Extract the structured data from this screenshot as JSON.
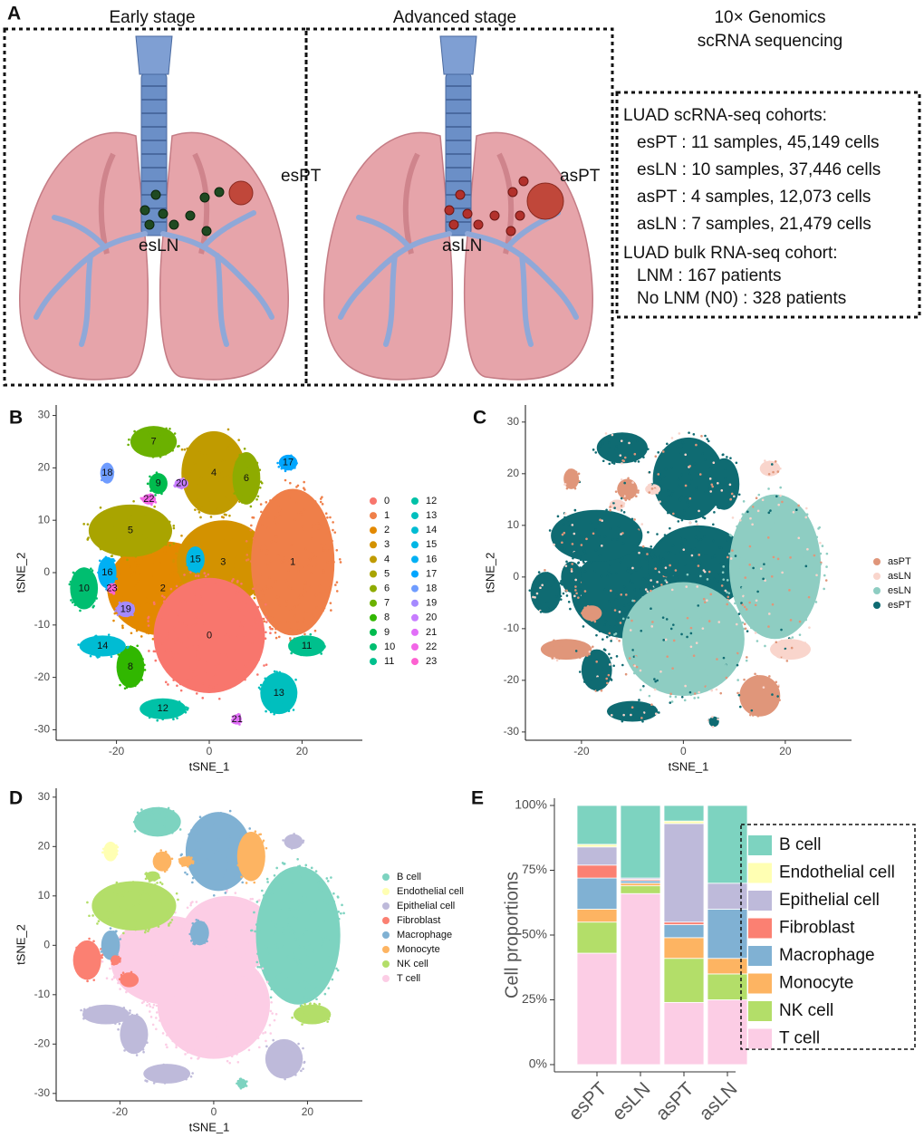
{
  "panel_a": {
    "label": "A",
    "early_title": "Early stage",
    "advanced_title": "Advanced stage",
    "method_title": [
      "10× Genomics",
      "scRNA sequencing"
    ],
    "early_sites": {
      "tumor": "esPT",
      "node": "esLN"
    },
    "advanced_sites": {
      "tumor": "asPT",
      "node": "asLN"
    },
    "scrna_heading": "LUAD scRNA-seq cohorts:",
    "scrna_items": [
      "esPT : 11 samples, 45,149 cells",
      "esLN : 10 samples, 37,446 cells",
      "asPT : 4 samples, 12,073 cells",
      "asLN : 7 samples, 21,479 cells"
    ],
    "bulk_heading": "LUAD bulk RNA-seq cohort:",
    "bulk_items": [
      "LNM : 167 patients",
      "No LNM (N0) : 328 patients"
    ]
  },
  "chart_data": [
    {
      "panel_label": "B",
      "type": "scatter",
      "xlabel": "tSNE_1",
      "ylabel": "tSNE_2",
      "xlim": [
        -33,
        33
      ],
      "ylim": [
        -32,
        32
      ],
      "xticks": [
        -20,
        0,
        20
      ],
      "yticks": [
        -30,
        -20,
        -10,
        0,
        10,
        20,
        30
      ],
      "series": [
        {
          "name": "0",
          "color": "#F8766D"
        },
        {
          "name": "1",
          "color": "#EF7F49"
        },
        {
          "name": "2",
          "color": "#E38900"
        },
        {
          "name": "3",
          "color": "#D39200"
        },
        {
          "name": "4",
          "color": "#C09B00"
        },
        {
          "name": "5",
          "color": "#A9A400"
        },
        {
          "name": "6",
          "color": "#8EAB00"
        },
        {
          "name": "7",
          "color": "#6BB100"
        },
        {
          "name": "8",
          "color": "#31B700"
        },
        {
          "name": "9",
          "color": "#00BB4E"
        },
        {
          "name": "10",
          "color": "#00BE70"
        },
        {
          "name": "11",
          "color": "#00C08D"
        },
        {
          "name": "12",
          "color": "#00C1A7"
        },
        {
          "name": "13",
          "color": "#00BFBE"
        },
        {
          "name": "14",
          "color": "#00BCD3"
        },
        {
          "name": "15",
          "color": "#00B7E5"
        },
        {
          "name": "16",
          "color": "#00B0F4"
        },
        {
          "name": "17",
          "color": "#00A6FF"
        },
        {
          "name": "18",
          "color": "#6F9CFF"
        },
        {
          "name": "19",
          "color": "#A58AFF"
        },
        {
          "name": "20",
          "color": "#C77CFF"
        },
        {
          "name": "21",
          "color": "#E16FF8"
        },
        {
          "name": "22",
          "color": "#F266E7"
        },
        {
          "name": "23",
          "color": "#FD61D1"
        }
      ]
    },
    {
      "panel_label": "C",
      "type": "scatter",
      "xlabel": "tSNE_1",
      "ylabel": "tSNE_2",
      "xlim": [
        -31,
        33
      ],
      "ylim": [
        -31.6,
        33.3
      ],
      "xticks": [
        -20,
        0,
        20
      ],
      "yticks": [
        -30,
        -20,
        -10,
        0,
        10,
        20,
        30
      ],
      "series": [
        {
          "name": "asPT",
          "color": "#E0967A"
        },
        {
          "name": "asLN",
          "color": "#F9D5CC"
        },
        {
          "name": "esLN",
          "color": "#8ECDC2"
        },
        {
          "name": "esPT",
          "color": "#0F6B72"
        }
      ]
    },
    {
      "panel_label": "D",
      "type": "scatter",
      "xlabel": "tSNE_1",
      "ylabel": "tSNE_2",
      "xlim": [
        -33.6,
        31.7
      ],
      "ylim": [
        -31.5,
        31.8
      ],
      "xticks": [
        -20,
        0,
        20
      ],
      "yticks": [
        -30,
        -20,
        -10,
        0,
        10,
        20,
        30
      ],
      "series": [
        {
          "name": "B cell",
          "color": "#7DD3C0"
        },
        {
          "name": "Endothelial cell",
          "color": "#FFFFB3"
        },
        {
          "name": "Epithelial cell",
          "color": "#BEBADA"
        },
        {
          "name": "Fibroblast",
          "color": "#FB8072"
        },
        {
          "name": "Macrophage",
          "color": "#80B1D3"
        },
        {
          "name": "Monocyte",
          "color": "#FDB462"
        },
        {
          "name": "NK cell",
          "color": "#B3DE69"
        },
        {
          "name": "T cell",
          "color": "#FCCDE5"
        }
      ]
    },
    {
      "panel_label": "E",
      "type": "stacked_bar",
      "ylabel": "Cell proportions",
      "categories": [
        "esPT",
        "esLN",
        "asPT",
        "asLN"
      ],
      "ylim": [
        0,
        100
      ],
      "yticks": [
        {
          "value": 0,
          "label": "0%"
        },
        {
          "value": 25,
          "label": "25%"
        },
        {
          "value": 50,
          "label": "50%"
        },
        {
          "value": 75,
          "label": "75%"
        },
        {
          "value": 100,
          "label": "100%"
        }
      ],
      "series": [
        {
          "name": "T cell",
          "color": "#FCCDE5",
          "values": [
            43,
            66,
            24,
            25
          ]
        },
        {
          "name": "NK cell",
          "color": "#B3DE69",
          "values": [
            12,
            3,
            17,
            10
          ]
        },
        {
          "name": "Monocyte",
          "color": "#FDB462",
          "values": [
            5,
            1,
            8,
            6
          ]
        },
        {
          "name": "Macrophage",
          "color": "#80B1D3",
          "values": [
            12,
            1,
            5,
            19
          ]
        },
        {
          "name": "Fibroblast",
          "color": "#FB8072",
          "values": [
            5,
            0.5,
            1,
            0
          ]
        },
        {
          "name": "Epithelial cell",
          "color": "#BEBADA",
          "values": [
            7,
            0.5,
            38,
            10
          ]
        },
        {
          "name": "Endothelial cell",
          "color": "#FFFFB3",
          "values": [
            1,
            0,
            1,
            0
          ]
        },
        {
          "name": "B cell",
          "color": "#7DD3C0",
          "values": [
            15,
            28,
            6,
            30
          ]
        }
      ]
    }
  ]
}
